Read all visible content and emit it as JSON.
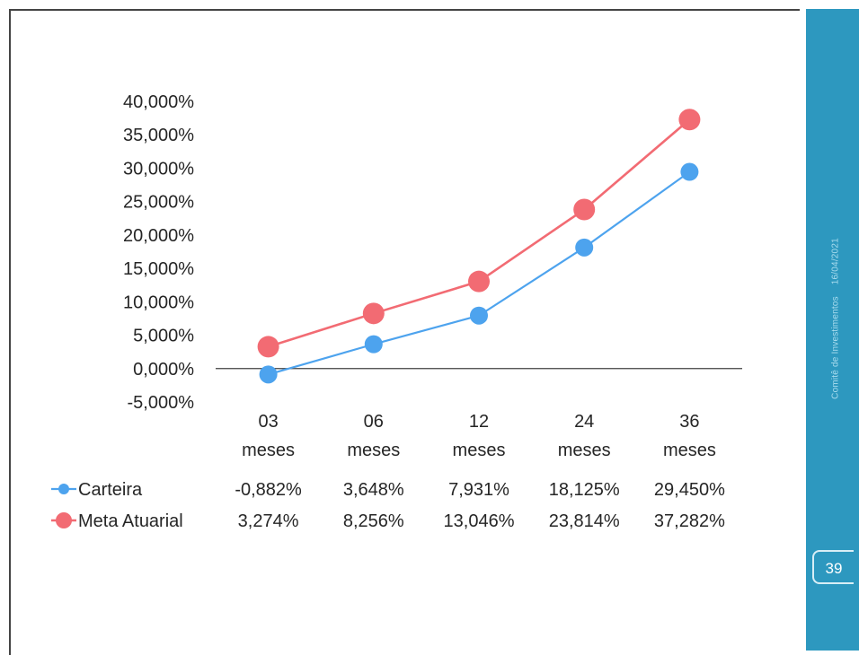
{
  "page_number": "39",
  "sidebar": {
    "title": "Comitê de Investimentos",
    "date": "16/04/2021"
  },
  "colors": {
    "carteira": "#4da3ee",
    "meta": "#f26b73",
    "sidebar": "#2d98bf"
  },
  "chart_data": {
    "type": "line",
    "categories": [
      "03 meses",
      "06 meses",
      "12 meses",
      "24 meses",
      "36 meses"
    ],
    "category_lines": [
      [
        "03",
        "meses"
      ],
      [
        "06",
        "meses"
      ],
      [
        "12",
        "meses"
      ],
      [
        "24",
        "meses"
      ],
      [
        "36",
        "meses"
      ]
    ],
    "ylim": [
      -5,
      40
    ],
    "yticks": [
      40,
      35,
      30,
      25,
      20,
      15,
      10,
      5,
      0,
      -5
    ],
    "ytick_labels": [
      "40,000%",
      "35,000%",
      "30,000%",
      "25,000%",
      "20,000%",
      "15,000%",
      "10,000%",
      "5,000%",
      "0,000%",
      "-5,000%"
    ],
    "series": [
      {
        "name": "Carteira",
        "values": [
          -0.882,
          3.648,
          7.931,
          18.125,
          29.45
        ],
        "labels": [
          "-0,882%",
          "3,648%",
          "7,931%",
          "18,125%",
          "29,450%"
        ]
      },
      {
        "name": "Meta Atuarial",
        "values": [
          3.274,
          8.256,
          13.046,
          23.814,
          37.282
        ],
        "labels": [
          "3,274%",
          "8,256%",
          "13,046%",
          "23,814%",
          "37,282%"
        ]
      }
    ],
    "data_table": true,
    "legend": "table-left"
  }
}
